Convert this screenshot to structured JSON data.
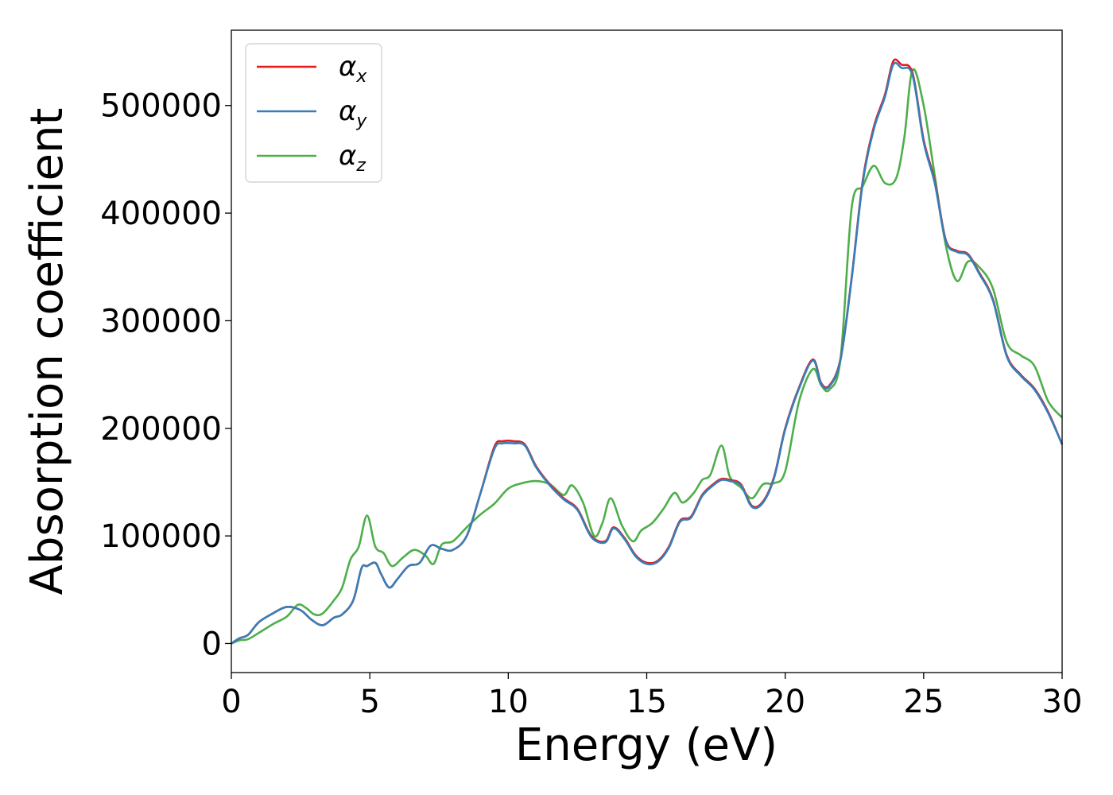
{
  "chart_data": {
    "type": "line",
    "title": "",
    "xlabel": "Energy (eV)",
    "ylabel": "Absorption coefficient",
    "xlim": [
      0,
      30
    ],
    "ylim": [
      -27000,
      570000
    ],
    "xticks": [
      0,
      5,
      10,
      15,
      20,
      25,
      30
    ],
    "xtick_labels": [
      "0",
      "5",
      "10",
      "15",
      "20",
      "25",
      "30"
    ],
    "yticks": [
      0,
      100000,
      200000,
      300000,
      400000,
      500000
    ],
    "ytick_labels": [
      "0",
      "100000",
      "200000",
      "300000",
      "400000",
      "500000"
    ],
    "grid": false,
    "legend": {
      "position": "top-left",
      "entries": [
        {
          "symbol": "α",
          "sub": "x"
        },
        {
          "symbol": "α",
          "sub": "y"
        },
        {
          "symbol": "α",
          "sub": "z"
        }
      ]
    },
    "series": [
      {
        "name": "αx",
        "color": "#e41a1c",
        "x": [
          0,
          0.3,
          0.6,
          1.0,
          1.5,
          2.0,
          2.5,
          2.9,
          3.3,
          3.7,
          4.0,
          4.4,
          4.7,
          4.9,
          5.2,
          5.4,
          5.7,
          6.0,
          6.4,
          6.8,
          7.2,
          7.6,
          8.0,
          8.5,
          9.0,
          9.5,
          9.8,
          10.2,
          10.6,
          11.0,
          11.5,
          12.0,
          12.5,
          13.0,
          13.5,
          13.8,
          14.2,
          14.6,
          15.0,
          15.4,
          15.8,
          16.2,
          16.6,
          17.0,
          17.4,
          17.7,
          18.0,
          18.4,
          18.8,
          19.2,
          19.6,
          20.0,
          20.5,
          21.0,
          21.3,
          21.6,
          22.0,
          22.4,
          22.8,
          23.2,
          23.6,
          23.9,
          24.2,
          24.6,
          25.0,
          25.4,
          25.8,
          26.2,
          26.6,
          27.0,
          27.5,
          28.0,
          28.5,
          29.0,
          29.5,
          30.0
        ],
        "values": [
          0,
          5000,
          8000,
          20000,
          28000,
          34000,
          31000,
          22000,
          17000,
          24000,
          27000,
          40000,
          70000,
          72000,
          75000,
          65000,
          52000,
          60000,
          72000,
          75000,
          91000,
          88000,
          87000,
          100000,
          140000,
          183000,
          188000,
          188000,
          185000,
          165000,
          148000,
          135000,
          125000,
          100000,
          95000,
          108000,
          98000,
          82000,
          75000,
          77000,
          90000,
          114000,
          118000,
          138000,
          148000,
          153000,
          152000,
          148000,
          128000,
          132000,
          155000,
          200000,
          238000,
          264000,
          242000,
          240000,
          265000,
          340000,
          430000,
          480000,
          510000,
          541000,
          538000,
          530000,
          468000,
          430000,
          375000,
          365000,
          362000,
          345000,
          320000,
          268000,
          250000,
          237000,
          215000,
          185000
        ]
      },
      {
        "name": "αy",
        "color": "#377eb8",
        "x": [
          0,
          0.3,
          0.6,
          1.0,
          1.5,
          2.0,
          2.5,
          2.9,
          3.3,
          3.7,
          4.0,
          4.4,
          4.7,
          4.9,
          5.2,
          5.4,
          5.7,
          6.0,
          6.4,
          6.8,
          7.2,
          7.6,
          8.0,
          8.5,
          9.0,
          9.5,
          9.8,
          10.2,
          10.6,
          11.0,
          11.5,
          12.0,
          12.5,
          13.0,
          13.5,
          13.8,
          14.2,
          14.6,
          15.0,
          15.4,
          15.8,
          16.2,
          16.6,
          17.0,
          17.4,
          17.7,
          18.0,
          18.4,
          18.8,
          19.2,
          19.6,
          20.0,
          20.5,
          21.0,
          21.3,
          21.6,
          22.0,
          22.4,
          22.8,
          23.2,
          23.6,
          23.9,
          24.2,
          24.6,
          25.0,
          25.4,
          25.8,
          26.2,
          26.6,
          27.0,
          27.5,
          28.0,
          28.5,
          29.0,
          29.5,
          30.0
        ],
        "values": [
          0,
          5000,
          8000,
          20000,
          28000,
          34000,
          31000,
          22000,
          17000,
          24000,
          27000,
          40000,
          70000,
          72000,
          75000,
          65000,
          52000,
          60000,
          72000,
          75000,
          91000,
          88000,
          87000,
          100000,
          140000,
          181000,
          186000,
          186000,
          184000,
          164000,
          147000,
          134000,
          124000,
          99000,
          94000,
          107000,
          97000,
          81000,
          74000,
          76000,
          89000,
          113000,
          117000,
          137000,
          147000,
          152000,
          151000,
          147000,
          127000,
          131000,
          154000,
          199000,
          237000,
          263000,
          241000,
          239000,
          264000,
          339000,
          428000,
          478000,
          508000,
          538000,
          535000,
          528000,
          466000,
          428000,
          374000,
          364000,
          361000,
          344000,
          319000,
          267000,
          249000,
          236000,
          214000,
          185000
        ]
      },
      {
        "name": "αz",
        "color": "#4daf4a",
        "x": [
          0,
          0.3,
          0.6,
          1.0,
          1.5,
          2.0,
          2.4,
          2.7,
          3.0,
          3.3,
          3.7,
          4.0,
          4.3,
          4.6,
          4.9,
          5.2,
          5.5,
          5.8,
          6.2,
          6.6,
          7.0,
          7.3,
          7.6,
          8.0,
          8.5,
          9.0,
          9.5,
          10.0,
          10.5,
          11.0,
          11.5,
          12.0,
          12.3,
          12.7,
          13.1,
          13.4,
          13.7,
          14.1,
          14.5,
          14.8,
          15.2,
          15.6,
          16.0,
          16.3,
          16.7,
          17.0,
          17.3,
          17.7,
          18.0,
          18.4,
          18.8,
          19.2,
          19.6,
          20.0,
          20.5,
          21.0,
          21.3,
          21.6,
          22.0,
          22.4,
          22.8,
          23.2,
          23.6,
          24.0,
          24.3,
          24.6,
          25.0,
          25.4,
          25.8,
          26.2,
          26.6,
          27.0,
          27.5,
          28.0,
          28.5,
          29.0,
          29.5,
          30.0
        ],
        "values": [
          0,
          3000,
          4000,
          10000,
          18000,
          25000,
          36000,
          33000,
          27000,
          28000,
          40000,
          52000,
          78000,
          90000,
          119000,
          90000,
          84000,
          72000,
          80000,
          87000,
          82000,
          74000,
          92000,
          95000,
          108000,
          120000,
          130000,
          144000,
          149000,
          151000,
          148000,
          138000,
          147000,
          131000,
          100000,
          112000,
          135000,
          110000,
          95000,
          105000,
          112000,
          125000,
          140000,
          131000,
          140000,
          152000,
          157000,
          184000,
          155000,
          145000,
          135000,
          148000,
          149000,
          160000,
          225000,
          255000,
          240000,
          236000,
          265000,
          405000,
          425000,
          444000,
          428000,
          432000,
          470000,
          533000,
          500000,
          435000,
          370000,
          337000,
          355000,
          350000,
          330000,
          280000,
          268000,
          258000,
          225000,
          210000
        ]
      }
    ]
  }
}
